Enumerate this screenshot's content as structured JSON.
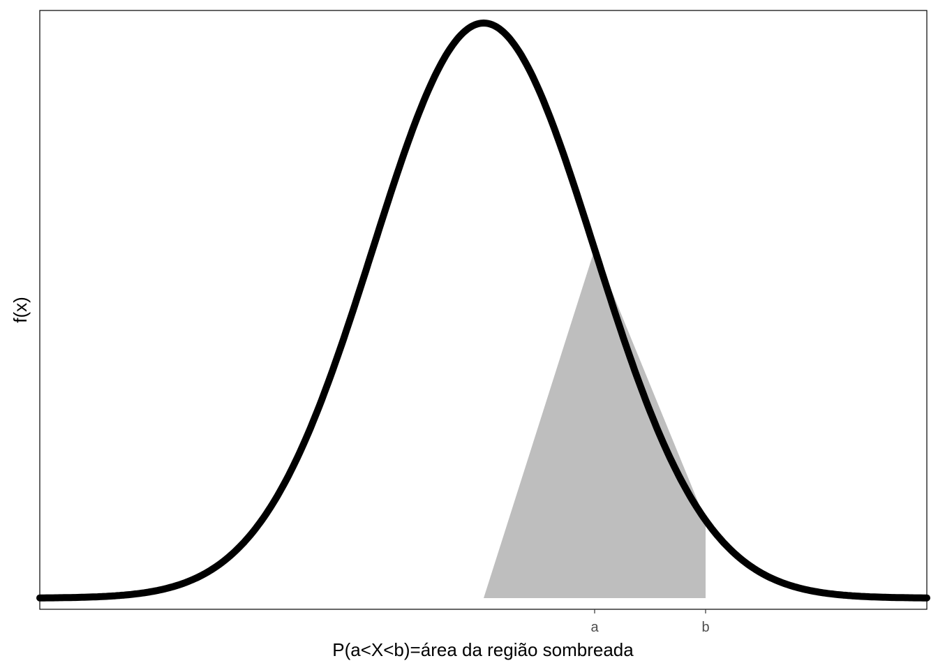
{
  "chart_data": {
    "type": "area",
    "xlabel": "P(a<X<b)=área da região sombreada",
    "ylabel": "f(x)",
    "grid": false,
    "xlim": [
      -4,
      4
    ],
    "curve": {
      "distribution": "normal",
      "mean": 0,
      "sd": 1,
      "color": "#000000"
    },
    "shaded_region": {
      "vertices": [
        [
          0,
          0
        ],
        [
          1,
          0.242
        ],
        [
          2,
          0.054
        ],
        [
          2,
          0
        ]
      ],
      "color": "#bebebe"
    },
    "x_ticks": [
      {
        "value": 1,
        "label": "a"
      },
      {
        "value": 2,
        "label": "b"
      }
    ]
  }
}
